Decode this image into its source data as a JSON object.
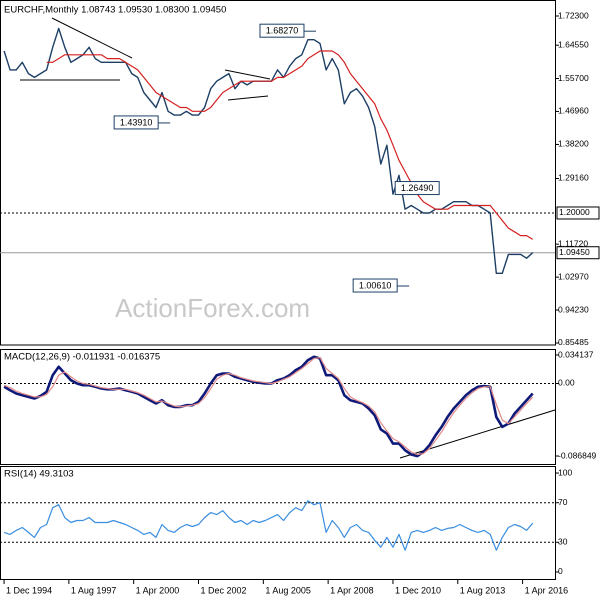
{
  "chart_data": [
    {
      "type": "line",
      "title": "EURCHF,Monthly  1.08743 1.09530 1.08300 1.09450",
      "watermark": "ActionForex.com",
      "x": [
        "1994-12",
        "1995-03",
        "1995-06",
        "1995-09",
        "1995-12",
        "1996-03",
        "1996-06",
        "1996-09",
        "1996-12",
        "1997-03",
        "1997-06",
        "1997-09",
        "1997-12",
        "1998-03",
        "1998-06",
        "1998-09",
        "1998-12",
        "1999-03",
        "1999-06",
        "1999-09",
        "1999-12",
        "2000-03",
        "2000-06",
        "2000-09",
        "2000-12",
        "2001-03",
        "2001-06",
        "2001-09",
        "2001-12",
        "2002-03",
        "2002-06",
        "2002-09",
        "2002-12",
        "2003-03",
        "2003-06",
        "2003-09",
        "2003-12",
        "2004-03",
        "2004-06",
        "2004-09",
        "2004-12",
        "2005-03",
        "2005-06",
        "2005-09",
        "2005-12",
        "2006-03",
        "2006-06",
        "2006-09",
        "2006-12",
        "2007-03",
        "2007-06",
        "2007-09",
        "2007-12",
        "2008-03",
        "2008-06",
        "2008-09",
        "2008-12",
        "2009-03",
        "2009-06",
        "2009-09",
        "2009-12",
        "2010-03",
        "2010-06",
        "2010-09",
        "2010-12",
        "2011-03",
        "2011-06",
        "2011-09",
        "2011-12",
        "2012-03",
        "2012-06",
        "2012-09",
        "2012-12",
        "2013-03",
        "2013-06",
        "2013-09",
        "2013-12",
        "2014-03",
        "2014-06",
        "2014-09",
        "2014-12",
        "2015-03",
        "2015-06",
        "2015-09",
        "2015-12",
        "2016-03",
        "2016-06",
        "2016-09"
      ],
      "series": [
        {
          "color": "#1d3f66",
          "values": [
            1.63,
            1.58,
            1.58,
            1.6,
            1.57,
            1.56,
            1.57,
            1.58,
            1.64,
            1.69,
            1.64,
            1.6,
            1.61,
            1.62,
            1.64,
            1.61,
            1.6,
            1.6,
            1.6,
            1.6,
            1.6,
            1.57,
            1.56,
            1.52,
            1.5,
            1.48,
            1.52,
            1.47,
            1.46,
            1.46,
            1.47,
            1.46,
            1.46,
            1.48,
            1.53,
            1.55,
            1.56,
            1.57,
            1.53,
            1.55,
            1.54,
            1.55,
            1.55,
            1.55,
            1.55,
            1.58,
            1.56,
            1.59,
            1.61,
            1.62,
            1.66,
            1.66,
            1.65,
            1.58,
            1.61,
            1.58,
            1.49,
            1.52,
            1.53,
            1.51,
            1.48,
            1.43,
            1.33,
            1.38,
            1.25,
            1.3,
            1.21,
            1.22,
            1.21,
            1.2,
            1.2,
            1.21,
            1.21,
            1.22,
            1.23,
            1.23,
            1.23,
            1.22,
            1.22,
            1.21,
            1.2,
            1.04,
            1.04,
            1.09,
            1.09,
            1.09,
            1.08,
            1.0945
          ]
        },
        {
          "color": "#d62020",
          "values": [
            null,
            null,
            null,
            null,
            null,
            null,
            null,
            1.6,
            1.6,
            1.61,
            1.62,
            1.62,
            1.62,
            1.62,
            1.62,
            1.62,
            1.62,
            1.61,
            1.61,
            1.61,
            1.6,
            1.59,
            1.58,
            1.56,
            1.54,
            1.52,
            1.51,
            1.5,
            1.49,
            1.48,
            1.48,
            1.47,
            1.47,
            1.47,
            1.48,
            1.5,
            1.52,
            1.53,
            1.54,
            1.55,
            1.55,
            1.55,
            1.55,
            1.55,
            1.55,
            1.56,
            1.56,
            1.57,
            1.58,
            1.59,
            1.61,
            1.62,
            1.63,
            1.63,
            1.63,
            1.62,
            1.6,
            1.57,
            1.55,
            1.53,
            1.51,
            1.49,
            1.45,
            1.42,
            1.38,
            1.34,
            1.31,
            1.28,
            1.25,
            1.23,
            1.22,
            1.21,
            1.21,
            1.21,
            1.22,
            1.22,
            1.22,
            1.22,
            1.22,
            1.22,
            1.22,
            1.2,
            1.18,
            1.16,
            1.15,
            1.14,
            1.14,
            1.13
          ]
        }
      ],
      "ylim": [
        0.8495,
        1.7655
      ],
      "yticks": [
        0.85485,
        {
          "value": 0.9423,
          "label": "0.94230"
        },
        {
          "value": 1.0297,
          "label": "1.02970"
        },
        {
          "value": 1.1172,
          "label": "1.11720"
        },
        {
          "value": 1.2916,
          "label": "1.29160"
        },
        {
          "value": 1.382,
          "label": "1.38200"
        },
        {
          "value": 1.4696,
          "label": "1.46960"
        },
        {
          "value": 1.557,
          "label": "1.55700"
        },
        {
          "value": 1.6455,
          "label": "1.64550"
        },
        {
          "value": 1.723,
          "label": "1.72300"
        }
      ],
      "levels": [
        {
          "value": 1.2,
          "label": "1.20000"
        },
        {
          "value": 1.0945,
          "label": "1.09450"
        }
      ],
      "annotations": [
        {
          "x": "2007-10",
          "value": 1.6827,
          "label": "1.68270"
        },
        {
          "x": "2001-10",
          "value": 1.4391,
          "label": "1.43910"
        },
        {
          "x": "2011-09",
          "value": 1.2649,
          "label": "1.26490"
        },
        {
          "x": "2011-08",
          "value": 1.0061,
          "label": "1.00610"
        }
      ]
    },
    {
      "type": "line",
      "title": "MACD(12,26,9) -0.011931 -0.016375",
      "series": [
        {
          "color": "#0f1a78",
          "values": [
            -0.004,
            -0.008,
            -0.012,
            -0.014,
            -0.016,
            -0.018,
            -0.015,
            -0.01,
            0.01,
            0.02,
            0.012,
            0.004,
            0.0,
            -0.002,
            -0.002,
            -0.004,
            -0.006,
            -0.007,
            -0.007,
            -0.006,
            -0.008,
            -0.01,
            -0.012,
            -0.016,
            -0.02,
            -0.024,
            -0.02,
            -0.026,
            -0.028,
            -0.028,
            -0.026,
            -0.026,
            -0.022,
            -0.012,
            0.0,
            0.01,
            0.012,
            0.012,
            0.008,
            0.006,
            0.004,
            0.002,
            0.001,
            0.0,
            0.0,
            0.004,
            0.006,
            0.01,
            0.016,
            0.02,
            0.028,
            0.032,
            0.03,
            0.01,
            0.01,
            0.004,
            -0.014,
            -0.02,
            -0.022,
            -0.024,
            -0.03,
            -0.038,
            -0.055,
            -0.06,
            -0.072,
            -0.072,
            -0.08,
            -0.085,
            -0.087,
            -0.082,
            -0.074,
            -0.062,
            -0.052,
            -0.04,
            -0.03,
            -0.022,
            -0.014,
            -0.008,
            -0.004,
            -0.003,
            -0.004,
            -0.04,
            -0.052,
            -0.048,
            -0.036,
            -0.028,
            -0.02,
            -0.011931
          ]
        },
        {
          "color": "#e38a8a",
          "values": [
            -0.002,
            -0.005,
            -0.009,
            -0.012,
            -0.014,
            -0.016,
            -0.016,
            -0.013,
            -0.004,
            0.01,
            0.014,
            0.008,
            0.003,
            0.0,
            -0.001,
            -0.003,
            -0.005,
            -0.006,
            -0.007,
            -0.007,
            -0.007,
            -0.009,
            -0.011,
            -0.014,
            -0.018,
            -0.022,
            -0.021,
            -0.024,
            -0.027,
            -0.028,
            -0.027,
            -0.026,
            -0.024,
            -0.017,
            -0.006,
            0.005,
            0.01,
            0.012,
            0.01,
            0.007,
            0.005,
            0.003,
            0.002,
            0.001,
            0.0,
            0.002,
            0.005,
            0.008,
            0.013,
            0.018,
            0.024,
            0.03,
            0.031,
            0.018,
            0.012,
            0.006,
            -0.006,
            -0.016,
            -0.02,
            -0.023,
            -0.027,
            -0.034,
            -0.047,
            -0.057,
            -0.066,
            -0.07,
            -0.076,
            -0.082,
            -0.085,
            -0.084,
            -0.078,
            -0.068,
            -0.058,
            -0.046,
            -0.035,
            -0.026,
            -0.018,
            -0.011,
            -0.006,
            -0.004,
            -0.004,
            -0.025,
            -0.044,
            -0.048,
            -0.04,
            -0.032,
            -0.024,
            -0.016375
          ]
        }
      ],
      "ylim": [
        -0.09763,
        0.04013
      ],
      "yticks": [
        0.034137,
        {
          "value": 0,
          "label": "0.00"
        },
        -0.086849
      ],
      "levels": [
        0
      ]
    },
    {
      "type": "line",
      "title": "RSI(14) 49.3103",
      "series": [
        {
          "color": "#3a8ee0",
          "values": [
            40,
            38,
            42,
            45,
            40,
            35,
            45,
            48,
            65,
            68,
            55,
            50,
            52,
            52,
            55,
            50,
            50,
            50,
            52,
            50,
            48,
            45,
            42,
            38,
            40,
            35,
            48,
            42,
            40,
            45,
            48,
            46,
            48,
            55,
            60,
            58,
            62,
            55,
            50,
            52,
            48,
            52,
            50,
            52,
            55,
            58,
            52,
            60,
            65,
            62,
            72,
            68,
            70,
            40,
            52,
            45,
            35,
            45,
            48,
            42,
            40,
            32,
            25,
            35,
            25,
            38,
            22,
            40,
            42,
            40,
            42,
            45,
            42,
            44,
            45,
            48,
            45,
            42,
            40,
            42,
            38,
            22,
            35,
            45,
            48,
            46,
            42,
            49.3103
          ]
        }
      ],
      "ylim": [
        -8.1,
        106.1
      ],
      "yticks": [
        100,
        70,
        30,
        0
      ],
      "levels": [
        70,
        30
      ],
      "xlim": [
        "1994-10",
        "2017-08"
      ],
      "xticks": [
        {
          "value": "1994-12",
          "label": "1 Dec 1994"
        },
        {
          "value": "1997-08",
          "label": "1 Aug 1997"
        },
        {
          "value": "2000-04",
          "label": "1 Apr 2000"
        },
        {
          "value": "2002-12",
          "label": "1 Dec 2002"
        },
        {
          "value": "2005-08",
          "label": "1 Aug 2005"
        },
        {
          "value": "2008-04",
          "label": "1 Apr 2008"
        },
        {
          "value": "2010-12",
          "label": "1 Dec 2010"
        },
        {
          "value": "2013-08",
          "label": "1 Aug 2013"
        },
        {
          "value": "2016-04",
          "label": "1 Apr 2016"
        }
      ]
    }
  ]
}
